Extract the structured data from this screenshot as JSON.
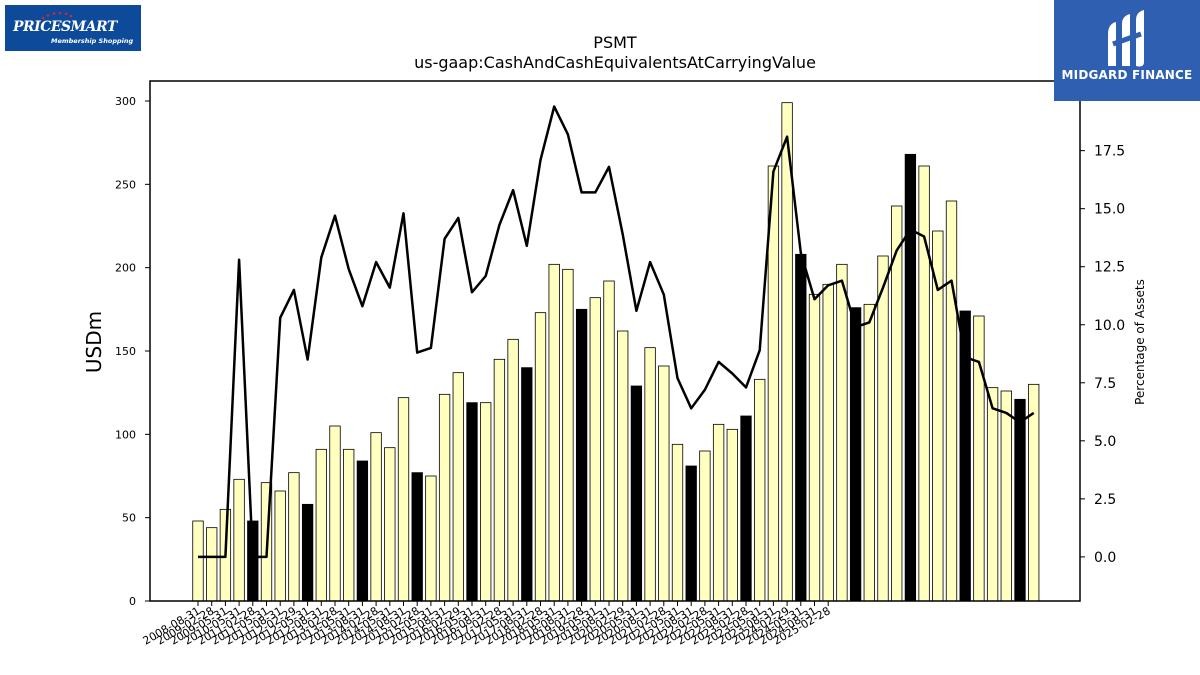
{
  "logos": {
    "left": {
      "brand_text": "PRICESMART",
      "tagline": "Membership Shopping"
    },
    "right": {
      "name": "MIDGARD FINANCE"
    }
  },
  "colors": {
    "bar_default": "#ffffc0",
    "bar_highlight": "#000000",
    "line": "#000000",
    "right_logo_bg": "#2f5fb0",
    "left_logo_bg": "#0d4a9a"
  },
  "chart_data": {
    "type": "bar",
    "title": "PSMT",
    "subtitle": "us-gaap:CashAndCashEquivalentsAtCarryingValue",
    "ylabel": "USDm",
    "y2label": "Percentage of Assets",
    "ylim": [
      0,
      312
    ],
    "y2lim": [
      -1.9,
      20.5
    ],
    "yticks": [
      "0",
      "50",
      "100",
      "150",
      "200",
      "250",
      "300"
    ],
    "y2ticks": [
      "0.0",
      "2.5",
      "5.0",
      "7.5",
      "10.0",
      "12.5",
      "15.0",
      "17.5"
    ],
    "x_tick_labels": [
      "2008-08-31",
      "2009-02-28",
      "2009-05-31",
      "2010-05-31",
      "2011-02-28",
      "2011-05-31",
      "2011-08-31",
      "2012-02-29",
      "2012-05-31",
      "2012-08-31",
      "2013-02-28",
      "2013-05-31",
      "2013-08-31",
      "2014-02-28",
      "2014-05-31",
      "2014-08-31",
      "2015-02-28",
      "2015-05-31",
      "2015-08-31",
      "2016-02-29",
      "2016-05-31",
      "2016-08-31",
      "2017-02-28",
      "2017-05-31",
      "2017-08-31",
      "2018-02-28",
      "2018-05-31",
      "2018-08-31",
      "2019-02-28",
      "2019-05-31",
      "2019-08-31",
      "2020-02-29",
      "2020-05-31",
      "2020-08-31",
      "2021-02-28",
      "2021-05-31",
      "2021-08-31",
      "2022-02-28",
      "2022-05-31",
      "2022-08-31",
      "2023-02-28",
      "2023-05-31",
      "2023-08-31",
      "2024-02-29",
      "2024-05-31",
      "2024-08-31",
      "2025-02-28"
    ],
    "bar_values": [
      48,
      44,
      55,
      73,
      48,
      71,
      66,
      77,
      58,
      91,
      105,
      91,
      84,
      101,
      92,
      122,
      77,
      75,
      124,
      137,
      119,
      119,
      145,
      157,
      140,
      173,
      202,
      199,
      175,
      182,
      192,
      162,
      129,
      152,
      141,
      94,
      81,
      90,
      106,
      103,
      111,
      133,
      261,
      299,
      208,
      184,
      190,
      202,
      176,
      178,
      207,
      237,
      268,
      261,
      222,
      240,
      174,
      171,
      128,
      126,
      121,
      130
    ],
    "highlight": [
      false,
      false,
      false,
      false,
      true,
      false,
      false,
      false,
      true,
      false,
      false,
      false,
      true,
      false,
      false,
      false,
      true,
      false,
      false,
      false,
      true,
      false,
      false,
      false,
      true,
      false,
      false,
      false,
      true,
      false,
      false,
      false,
      true,
      false,
      false,
      false,
      true,
      false,
      false,
      false,
      true,
      false,
      false,
      false,
      true,
      false,
      false,
      false,
      true,
      false,
      false,
      false,
      true,
      false,
      false,
      false,
      true,
      false,
      false,
      false,
      true,
      false
    ],
    "line_values": [
      0.0,
      0.0,
      0.0,
      12.8,
      0.0,
      0.0,
      10.3,
      11.5,
      8.5,
      12.9,
      14.7,
      12.4,
      10.8,
      12.7,
      11.6,
      14.8,
      8.8,
      9.0,
      13.7,
      14.6,
      11.4,
      12.1,
      14.3,
      15.8,
      13.4,
      17.1,
      19.4,
      18.2,
      15.7,
      15.7,
      16.8,
      13.9,
      10.6,
      12.7,
      11.3,
      7.7,
      6.4,
      7.2,
      8.4,
      7.9,
      7.3,
      8.9,
      16.6,
      18.1,
      13.1,
      11.1,
      11.7,
      11.9,
      9.9,
      10.1,
      11.6,
      13.2,
      14.1,
      13.8,
      11.5,
      11.9,
      8.6,
      8.4,
      6.4,
      6.2,
      5.8,
      6.2
    ]
  }
}
